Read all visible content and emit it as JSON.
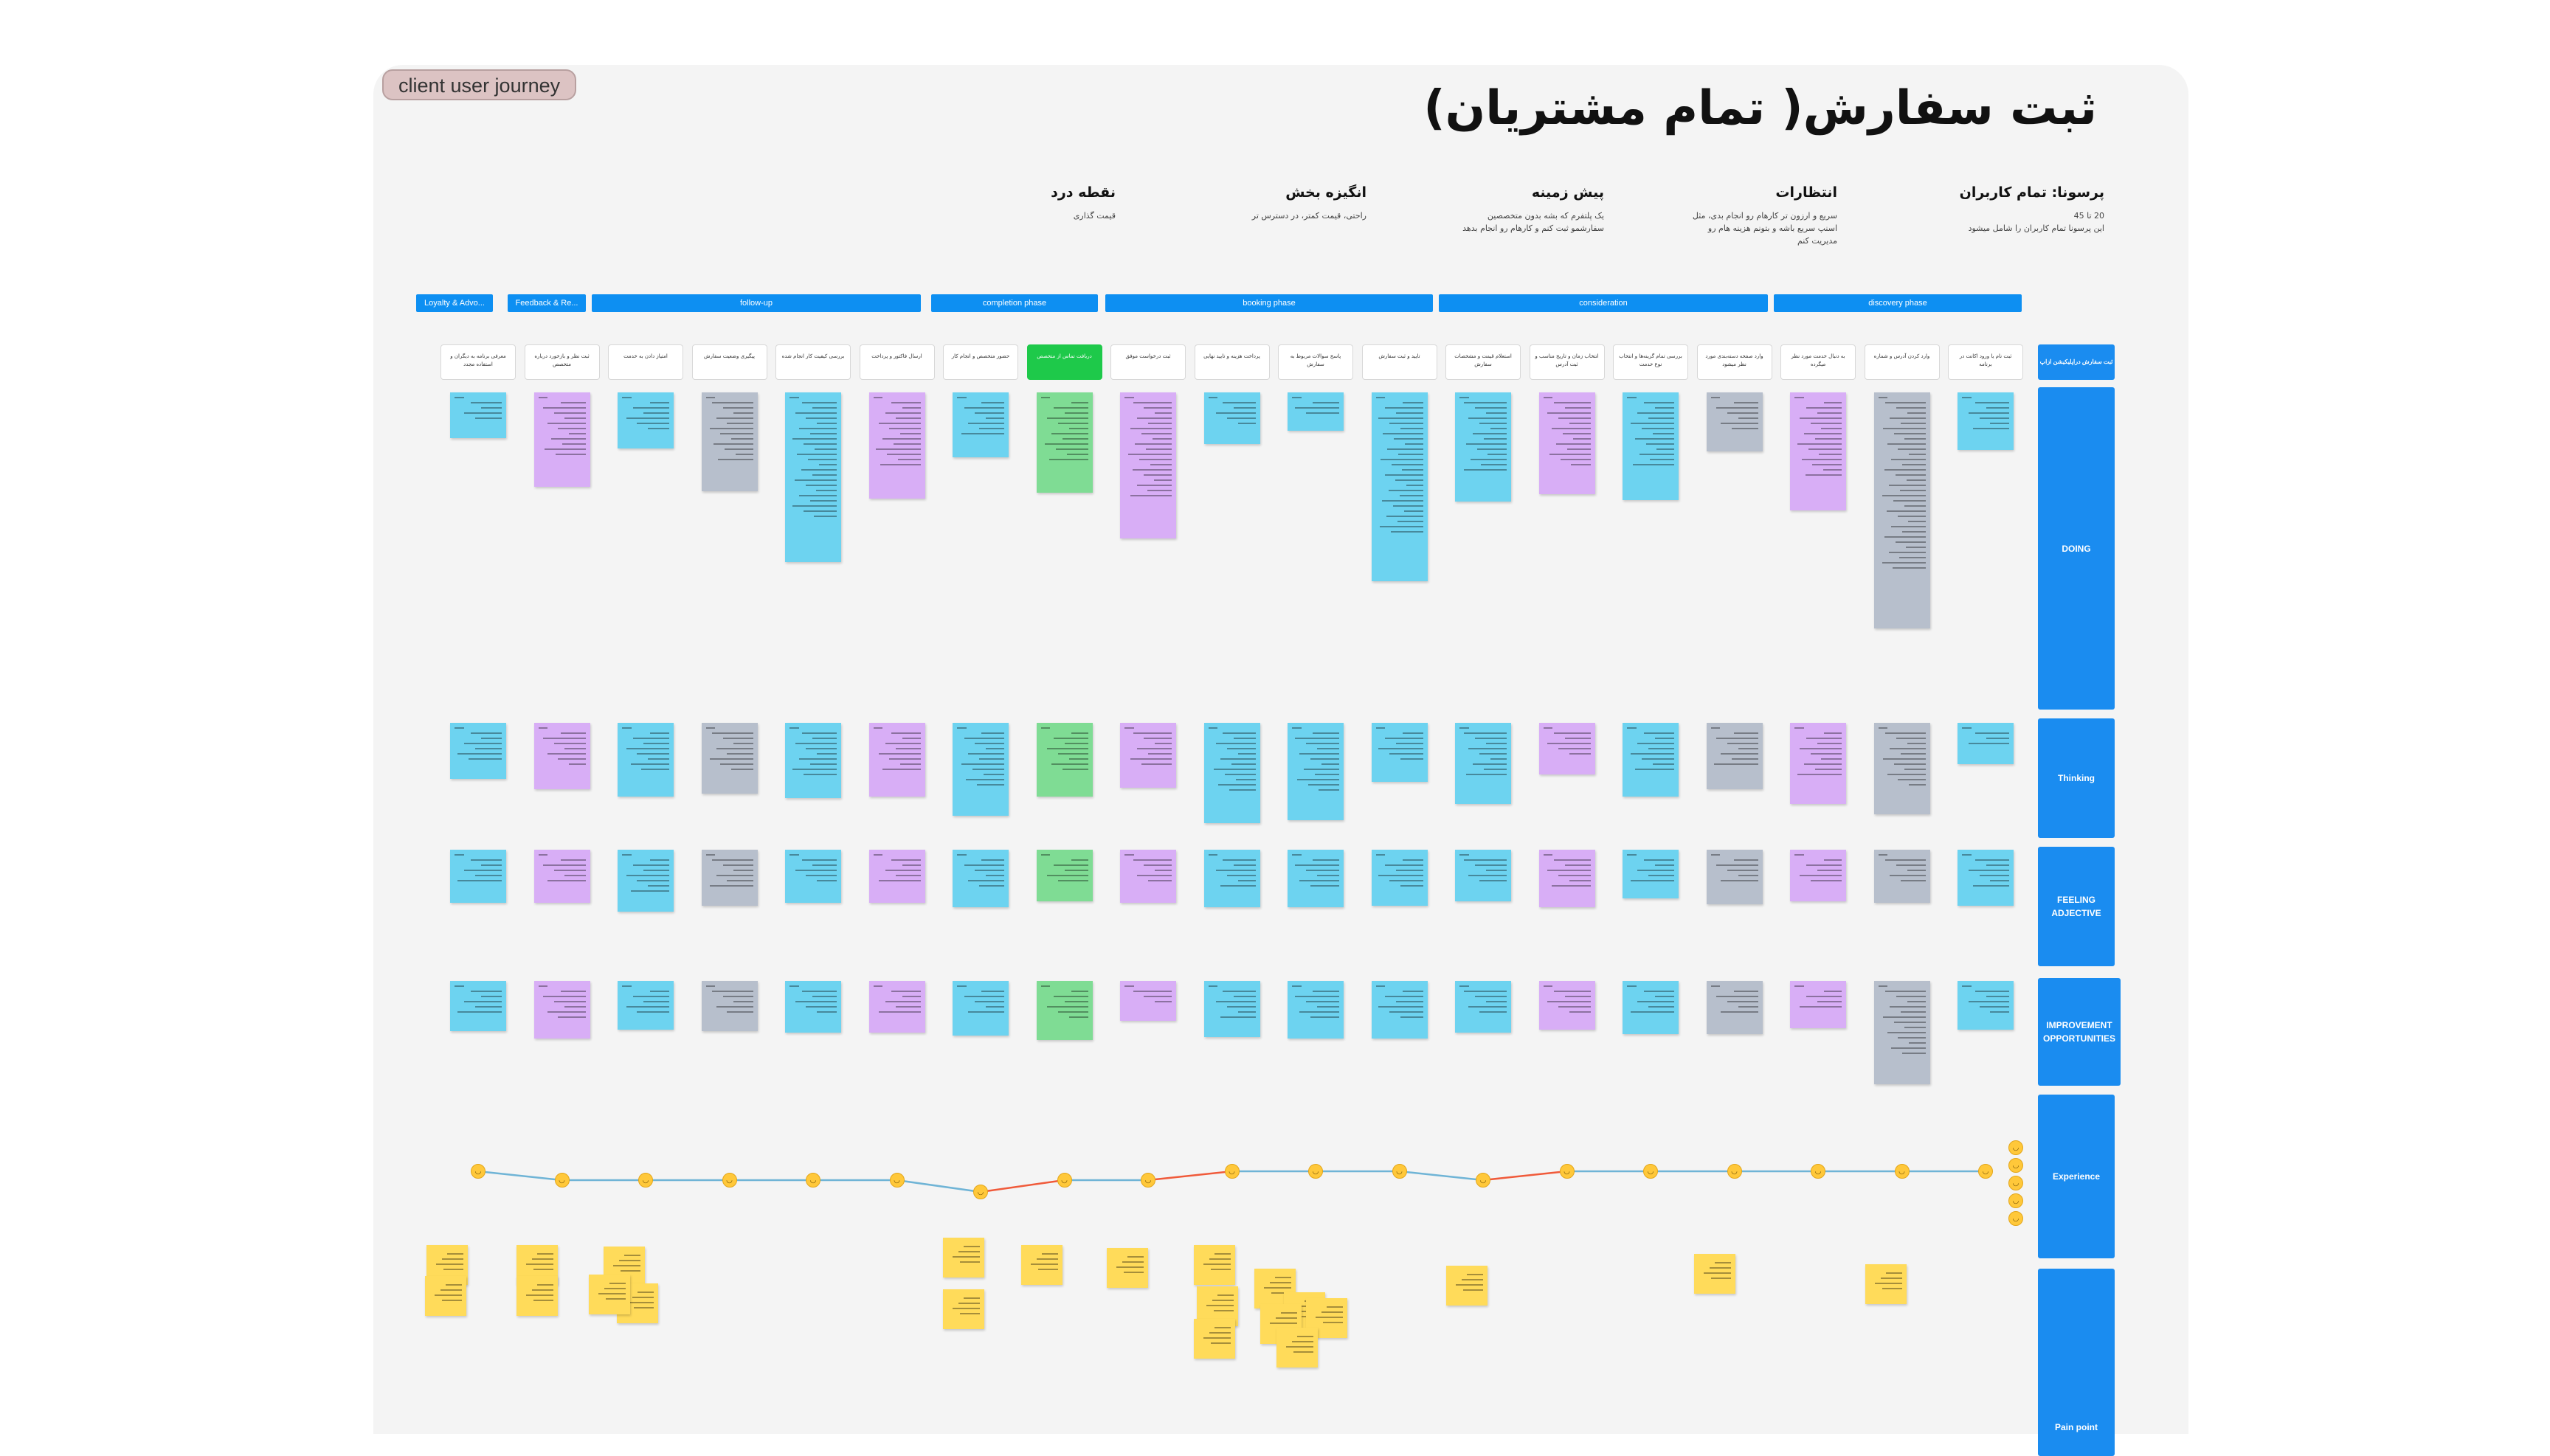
{
  "badge": "client user journey",
  "title": "ثبت سفارش( تمام مشتریان)",
  "header_cols": [
    {
      "heading": "پرسونا: تمام کاربران",
      "sub": "20 تا 45\nاین پرسونا تمام کاربران را شامل میشود"
    },
    {
      "heading": "انتظارات",
      "sub": "سریع و ارزون تر کارهام رو انجام بدی، مثل\nاسنپ سریع باشه و بتونم هزینه هام رو\nمدیریت کنم"
    },
    {
      "heading": "پیش زمینه",
      "sub": "یک پلتفرم که بشه بدون متخصصین\nسفارشمو ثبت کنم و کارهام رو انجام بدهد"
    },
    {
      "heading": "انگیزه بخش",
      "sub": "راحتی، قیمت کمتر، در دسترس تر"
    },
    {
      "heading": "نقطه درد",
      "sub": "قیمت گذاری"
    }
  ],
  "phases": [
    "discovery phase",
    "consideration",
    "booking phase",
    "completion phase",
    "follow-up",
    "Feedback & Re...",
    "Loyalty & Advo..."
  ],
  "corner_label": "ثبت سفارش دراپلیکیشن ازاپ",
  "steps": [
    "ثبت نام یا ورود اکانت در برنامه",
    "وارد کردن آدرس و شماره",
    "به دنبال خدمت مورد نظر میگرده",
    "وارد صفحه دسته‌بندی مورد نظر میشود",
    "بررسی تمام گزینه‌ها و انتخاب نوع خدمت",
    "انتخاب زمان و تاریخ مناسب و ثبت آدرس",
    "استعلام قیمت و مشخصات سفارش",
    "تایید و ثبت سفارش",
    "پاسخ سوالات مربوط به سفارش",
    "پرداخت هزینه و تایید نهایی",
    "ثبت درخواست موفق",
    "دریافت تماس از متخصص",
    "حضور متخصص و انجام کار",
    "ارسال فاکتور و پرداخت",
    "بررسی کیفیت کار انجام شده",
    "پیگیری وضعیت سفارش",
    "امتیاز دادن به خدمت",
    "ثبت نظر و بازخورد درباره متخصص",
    "معرفی برنامه به دیگران و استفاده مجدد"
  ],
  "rows": [
    "DOING",
    "Thinking",
    "FEELING ADJECTIVE",
    "IMPROVEMENT OPPORTUNITIES",
    "Experience",
    "Pain point"
  ],
  "colors": {
    "accent": "#1a8cf0",
    "purple": "#d8aef6",
    "cyan": "#6dd3f0",
    "gray": "#b7bfcc",
    "green": "#7fdc94",
    "yellow": "#ffdb5a",
    "line_up": "#6fb4d6",
    "line_down": "#f05a3a"
  },
  "experience": [
    2,
    2,
    2,
    2,
    2,
    2,
    1,
    2,
    2,
    2,
    1,
    1,
    0,
    1,
    1,
    1,
    1,
    1,
    2
  ],
  "icons": {
    "face": "smiley-face-icon"
  }
}
